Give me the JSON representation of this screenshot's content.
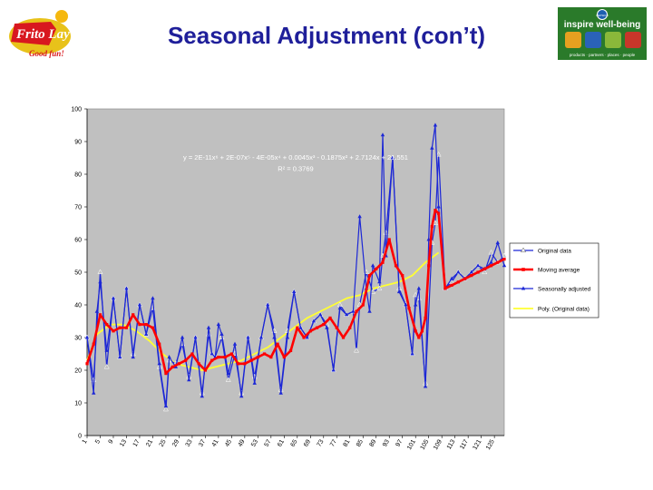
{
  "slide": {
    "title": "Seasonal Adjustment (con’t)"
  },
  "logos": {
    "left_brand": "Frito Lay",
    "left_tagline": "Good fun!",
    "right_header": "inspire well-being",
    "right_pepsico": "PEPSICO",
    "right_footer": "products · partners · places · people"
  },
  "colors": {
    "plot_bg": "#c0c0c0",
    "original": "#1c27d6",
    "moving_avg": "#ff0000",
    "seasonal": "#1c27d6",
    "poly": "#ffff33",
    "title": "#1f1f9a"
  },
  "chart_data": {
    "type": "line",
    "ylim": [
      0,
      100
    ],
    "yticks": [
      0,
      10,
      20,
      30,
      40,
      50,
      60,
      70,
      80,
      90,
      100
    ],
    "xticks": [
      1,
      5,
      9,
      13,
      17,
      21,
      25,
      29,
      33,
      37,
      41,
      45,
      49,
      53,
      57,
      61,
      65,
      69,
      73,
      77,
      81,
      85,
      89,
      93,
      97,
      101,
      105,
      109,
      113,
      117,
      121,
      125
    ],
    "xlim": [
      1,
      128
    ],
    "grid": false,
    "legend_position": "right",
    "annotation": {
      "equation": "y = 2E-11x⁶ + 2E-07x⁵ - 4E-05x⁴ + 0.0045x³ - 0.1875x² + 2.7124x + 21.551",
      "r_squared": "R² = 0.3769"
    },
    "series": [
      {
        "name": "Original data",
        "marker": "triangle-open",
        "x": [
          1,
          3,
          5,
          7,
          9,
          11,
          13,
          15,
          17,
          19,
          21,
          23,
          25,
          26,
          28,
          30,
          32,
          34,
          36,
          38,
          39,
          40,
          42,
          44,
          46,
          48,
          50,
          52,
          54,
          56,
          58,
          60,
          62,
          64,
          66,
          68,
          70,
          72,
          74,
          76,
          78,
          80,
          82,
          83,
          84,
          86,
          88,
          90,
          91,
          92,
          94,
          96,
          98,
          100,
          101,
          102,
          104,
          106,
          107,
          108,
          110,
          112,
          114,
          116,
          118,
          120,
          122,
          124,
          126,
          128
        ],
        "values": [
          30,
          17,
          50,
          21,
          42,
          24,
          45,
          25,
          40,
          31,
          39,
          21,
          8,
          23,
          22,
          28,
          18,
          30,
          13,
          31,
          25,
          24,
          30,
          17,
          25,
          13,
          30,
          18,
          30,
          40,
          32,
          14,
          32,
          44,
          33,
          30,
          35,
          37,
          34,
          20,
          40,
          37,
          38,
          26,
          40,
          50,
          44,
          45,
          55,
          62,
          85,
          45,
          40,
          25,
          43,
          42,
          16,
          59,
          65,
          86,
          45,
          47,
          50,
          48,
          50,
          52,
          50,
          56,
          53,
          55
        ]
      },
      {
        "name": "Moving average",
        "marker": "square",
        "x": [
          1,
          3,
          5,
          7,
          9,
          11,
          13,
          15,
          17,
          19,
          21,
          23,
          25,
          27,
          29,
          31,
          33,
          35,
          37,
          39,
          41,
          43,
          45,
          47,
          49,
          51,
          53,
          55,
          57,
          59,
          61,
          63,
          65,
          67,
          69,
          71,
          73,
          75,
          77,
          79,
          81,
          83,
          85,
          87,
          89,
          91,
          93,
          95,
          97,
          99,
          101,
          102,
          103,
          104,
          105,
          106,
          107,
          108,
          110,
          112,
          114,
          116,
          118,
          120,
          122,
          124,
          126,
          128
        ],
        "values": [
          22,
          28,
          37,
          34,
          32,
          33,
          33,
          37,
          34,
          34,
          33,
          28,
          19,
          21,
          22,
          23,
          25,
          22,
          20,
          23,
          24,
          24,
          25,
          22,
          22,
          23,
          24,
          25,
          24,
          28,
          24,
          26,
          33,
          30,
          32,
          33,
          34,
          36,
          33,
          30,
          33,
          38,
          40,
          49,
          51,
          53,
          60,
          52,
          49,
          39,
          32,
          30,
          32,
          36,
          52,
          64,
          69,
          68,
          45,
          46,
          47,
          48,
          49,
          50,
          51,
          52,
          53,
          54
        ]
      },
      {
        "name": "Seasonally adjusted",
        "marker": "triangle-filled",
        "x": [
          1,
          3,
          4,
          5,
          7,
          9,
          11,
          13,
          15,
          17,
          19,
          21,
          23,
          25,
          26,
          28,
          30,
          32,
          34,
          36,
          38,
          39,
          40,
          41,
          42,
          44,
          46,
          48,
          50,
          52,
          54,
          56,
          58,
          60,
          62,
          64,
          66,
          68,
          70,
          72,
          74,
          76,
          78,
          80,
          82,
          84,
          86,
          87,
          88,
          90,
          91,
          92,
          94,
          96,
          98,
          100,
          101,
          102,
          104,
          105,
          106,
          107,
          108,
          110,
          112,
          114,
          116,
          118,
          120,
          122,
          124,
          126,
          128
        ],
        "values": [
          30,
          13,
          38,
          47,
          26,
          42,
          24,
          45,
          24,
          40,
          31,
          42,
          22,
          9,
          24,
          21,
          30,
          17,
          30,
          12,
          33,
          25,
          24,
          34,
          31,
          19,
          28,
          12,
          30,
          16,
          30,
          40,
          30,
          13,
          30,
          44,
          33,
          30,
          35,
          37,
          33,
          20,
          39,
          37,
          38,
          67,
          45,
          38,
          52,
          47,
          92,
          55,
          85,
          44,
          40,
          25,
          40,
          45,
          15,
          60,
          88,
          95,
          70,
          45,
          48,
          50,
          48,
          50,
          52,
          51,
          53,
          59,
          52
        ]
      },
      {
        "name": "Poly. (Original data)",
        "marker": "none",
        "x": [
          1,
          4,
          8,
          12,
          16,
          20,
          24,
          28,
          32,
          36,
          40,
          44,
          48,
          52,
          56,
          60,
          64,
          68,
          72,
          76,
          80,
          84,
          88,
          92,
          96,
          100,
          104,
          108
        ],
        "values": [
          23,
          31,
          34,
          34,
          32,
          29,
          25,
          22,
          21,
          20,
          21,
          22,
          23,
          25,
          27,
          30,
          33,
          36,
          38,
          40,
          42,
          43,
          45,
          46,
          47,
          49,
          53,
          56
        ]
      }
    ]
  }
}
